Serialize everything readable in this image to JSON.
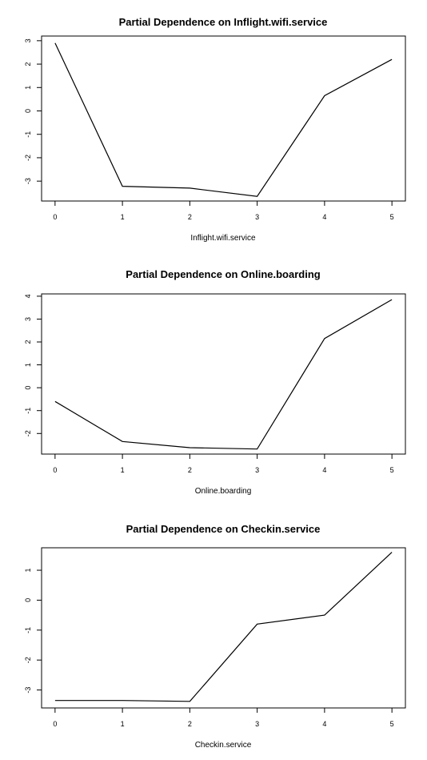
{
  "chart_data": [
    {
      "type": "line",
      "title": "Partial Dependence on Inflight.wifi.service",
      "xlabel": "Inflight.wifi.service",
      "ylabel": "",
      "x": [
        0,
        1,
        2,
        3,
        4,
        5
      ],
      "series": [
        {
          "values": [
            2.9,
            -3.22,
            -3.3,
            -3.65,
            0.65,
            2.2
          ]
        }
      ],
      "xticks": [
        0,
        1,
        2,
        3,
        4,
        5
      ],
      "yticks": [
        -3,
        -2,
        -1,
        0,
        1,
        2,
        3
      ],
      "ytick_labels": [
        "-3",
        "-2",
        "-1",
        "0",
        "1",
        "2",
        "3"
      ],
      "ylim": [
        -3.85,
        3.2
      ],
      "grid": false
    },
    {
      "type": "line",
      "title": "Partial Dependence on Online.boarding",
      "xlabel": "Online.boarding",
      "ylabel": "",
      "x": [
        0,
        1,
        2,
        3,
        4,
        5
      ],
      "series": [
        {
          "values": [
            -0.6,
            -2.35,
            -2.62,
            -2.68,
            2.15,
            3.85
          ]
        }
      ],
      "xticks": [
        0,
        1,
        2,
        3,
        4,
        5
      ],
      "yticks": [
        -2,
        -1,
        0,
        1,
        2,
        3,
        4
      ],
      "ytick_labels": [
        "-2",
        "-1",
        "0",
        "1",
        "2",
        "3",
        "4"
      ],
      "ylim": [
        -2.9,
        4.1
      ],
      "grid": false
    },
    {
      "type": "line",
      "title": "Partial Dependence on Checkin.service",
      "xlabel": "Checkin.service",
      "ylabel": "",
      "x": [
        0,
        1,
        2,
        3,
        4,
        5
      ],
      "series": [
        {
          "values": [
            -3.35,
            -3.35,
            -3.38,
            -0.8,
            -0.5,
            1.6
          ]
        }
      ],
      "xticks": [
        0,
        1,
        2,
        3,
        4,
        5
      ],
      "yticks": [
        -3,
        -2,
        -1,
        0,
        1
      ],
      "ytick_labels": [
        "-3",
        "-2",
        "-1",
        "0",
        "1"
      ],
      "ylim": [
        -3.6,
        1.75
      ],
      "grid": false
    }
  ]
}
